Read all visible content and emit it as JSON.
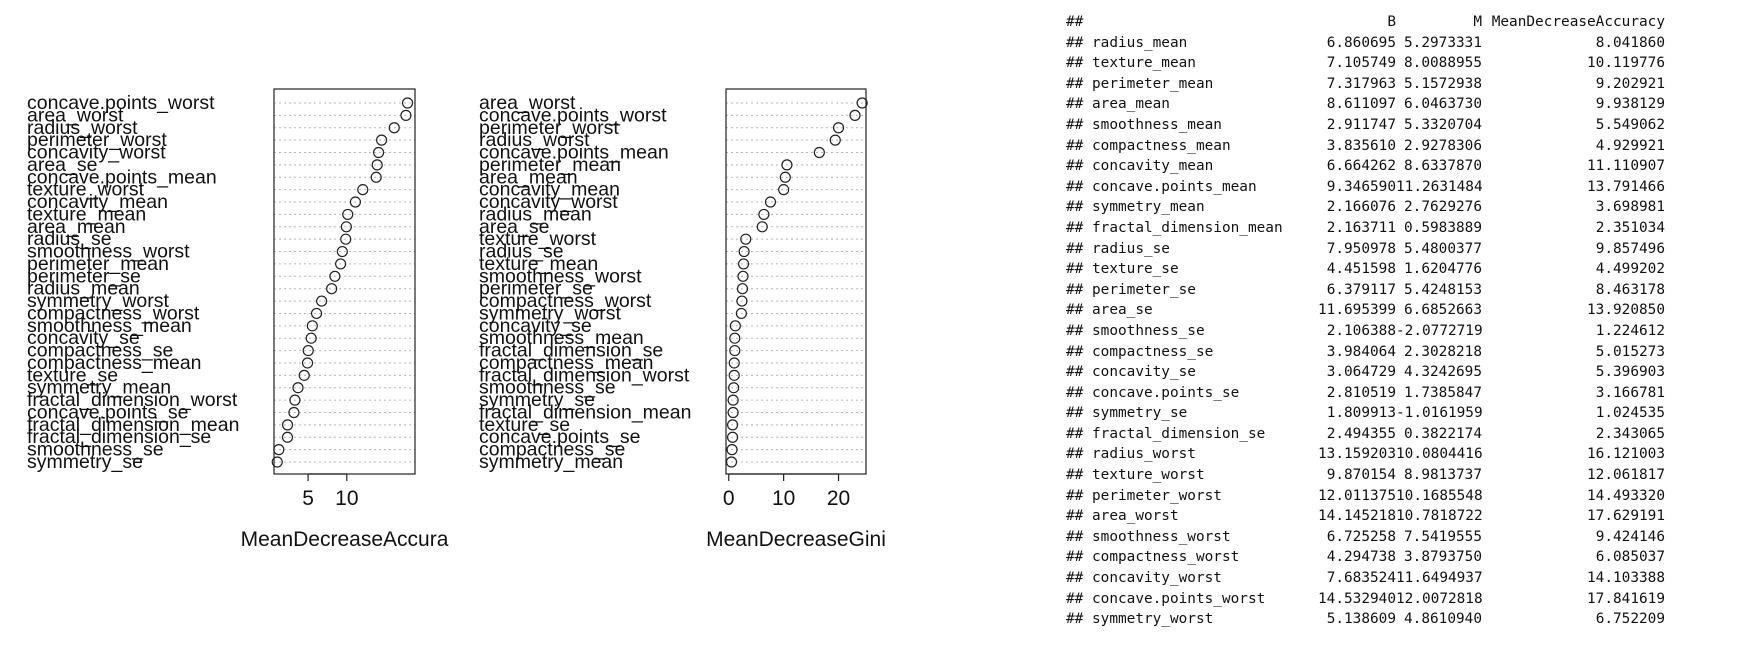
{
  "chart_data": [
    {
      "type": "scatter",
      "plot": "dotchart",
      "xlabel": "MeanDecreaseAccura",
      "xticks": [
        5,
        10
      ],
      "xlim": [
        0.6,
        18.8
      ],
      "grid": true,
      "labels": [
        "concave.points_worst",
        "area_worst",
        "radius_worst",
        "perimeter_worst",
        "concavity_worst",
        "area_se",
        "concave.points_mean",
        "texture_worst",
        "concavity_mean",
        "texture_mean",
        "area_mean",
        "radius_se",
        "smoothness_worst",
        "perimeter_mean",
        "perimeter_se",
        "radius_mean",
        "symmetry_worst",
        "compactness_worst",
        "smoothness_mean",
        "concavity_se",
        "compactness_se",
        "compactness_mean",
        "texture_se",
        "symmetry_mean",
        "fractal_dimension_worst",
        "concave.points_se",
        "fractal_dimension_mean",
        "fractal_dimension_se",
        "smoothness_se",
        "symmetry_se"
      ],
      "values": [
        17.84,
        17.63,
        16.12,
        14.49,
        14.1,
        13.92,
        13.79,
        12.06,
        11.11,
        10.12,
        9.94,
        9.86,
        9.42,
        9.2,
        8.46,
        8.04,
        6.75,
        6.09,
        5.55,
        5.4,
        5.02,
        4.93,
        4.5,
        3.7,
        3.3,
        3.17,
        2.35,
        2.34,
        1.22,
        1.02
      ]
    },
    {
      "type": "scatter",
      "plot": "dotchart",
      "xlabel": "MeanDecreaseGini",
      "xticks": [
        0,
        10,
        20
      ],
      "xlim": [
        -0.5,
        25
      ],
      "grid": true,
      "labels": [
        "area_worst",
        "concave.points_worst",
        "perimeter_worst",
        "radius_worst",
        "concave.points_mean",
        "perimeter_mean",
        "area_mean",
        "concavity_mean",
        "concavity_worst",
        "radius_mean",
        "area_se",
        "texture_worst",
        "radius_se",
        "texture_mean",
        "smoothness_worst",
        "perimeter_se",
        "compactness_worst",
        "symmetry_worst",
        "concavity_se",
        "smoothness_mean",
        "fractal_dimension_se",
        "compactness_mean",
        "fractal_dimension_worst",
        "smoothness_se",
        "symmetry_se",
        "fractal_dimension_mean",
        "texture_se",
        "concave.points_se",
        "compactness_se",
        "symmetry_mean"
      ],
      "values": [
        24.3,
        23.0,
        20.0,
        19.4,
        16.5,
        10.6,
        10.3,
        10.0,
        7.6,
        6.4,
        6.1,
        3.1,
        2.8,
        2.7,
        2.6,
        2.5,
        2.4,
        2.3,
        1.2,
        1.1,
        1.1,
        1.0,
        1.0,
        0.9,
        0.8,
        0.8,
        0.7,
        0.7,
        0.6,
        0.5
      ]
    }
  ],
  "console": {
    "prefix": "##",
    "header": {
      "b": "B",
      "m": "M",
      "acc": "MeanDecreaseAccuracy"
    },
    "rows": [
      {
        "name": "radius_mean",
        "b": "6.860695",
        "m": "5.2973331",
        "acc": "8.041860"
      },
      {
        "name": "texture_mean",
        "b": "7.105749",
        "m": "8.0088955",
        "acc": "10.119776"
      },
      {
        "name": "perimeter_mean",
        "b": "7.317963",
        "m": "5.1572938",
        "acc": "9.202921"
      },
      {
        "name": "area_mean",
        "b": "8.611097",
        "m": "6.0463730",
        "acc": "9.938129"
      },
      {
        "name": "smoothness_mean",
        "b": "2.911747",
        "m": "5.3320704",
        "acc": "5.549062"
      },
      {
        "name": "compactness_mean",
        "b": "3.835610",
        "m": "2.9278306",
        "acc": "4.929921"
      },
      {
        "name": "concavity_mean",
        "b": "6.664262",
        "m": "8.6337870",
        "acc": "11.110907"
      },
      {
        "name": "concave.points_mean",
        "b": "9.346590",
        "m": "11.2631484",
        "acc": "13.791466"
      },
      {
        "name": "symmetry_mean",
        "b": "2.166076",
        "m": "2.7629276",
        "acc": "3.698981"
      },
      {
        "name": "fractal_dimension_mean",
        "b": "2.163711",
        "m": "0.5983889",
        "acc": "2.351034"
      },
      {
        "name": "radius_se",
        "b": "7.950978",
        "m": "5.4800377",
        "acc": "9.857496"
      },
      {
        "name": "texture_se",
        "b": "4.451598",
        "m": "1.6204776",
        "acc": "4.499202"
      },
      {
        "name": "perimeter_se",
        "b": "6.379117",
        "m": "5.4248153",
        "acc": "8.463178"
      },
      {
        "name": "area_se",
        "b": "11.695399",
        "m": "6.6852663",
        "acc": "13.920850"
      },
      {
        "name": "smoothness_se",
        "b": "2.106388",
        "m": "-2.0772719",
        "acc": "1.224612"
      },
      {
        "name": "compactness_se",
        "b": "3.984064",
        "m": "2.3028218",
        "acc": "5.015273"
      },
      {
        "name": "concavity_se",
        "b": "3.064729",
        "m": "4.3242695",
        "acc": "5.396903"
      },
      {
        "name": "concave.points_se",
        "b": "2.810519",
        "m": "1.7385847",
        "acc": "3.166781"
      },
      {
        "name": "symmetry_se",
        "b": "1.809913",
        "m": "-1.0161959",
        "acc": "1.024535"
      },
      {
        "name": "fractal_dimension_se",
        "b": "2.494355",
        "m": "0.3822174",
        "acc": "2.343065"
      },
      {
        "name": "radius_worst",
        "b": "13.159203",
        "m": "10.0804416",
        "acc": "16.121003"
      },
      {
        "name": "texture_worst",
        "b": "9.870154",
        "m": "8.9813737",
        "acc": "12.061817"
      },
      {
        "name": "perimeter_worst",
        "b": "12.011375",
        "m": "10.1685548",
        "acc": "14.493320"
      },
      {
        "name": "area_worst",
        "b": "14.145218",
        "m": "10.7818722",
        "acc": "17.629191"
      },
      {
        "name": "smoothness_worst",
        "b": "6.725258",
        "m": "7.5419555",
        "acc": "9.424146"
      },
      {
        "name": "compactness_worst",
        "b": "4.294738",
        "m": "3.8793750",
        "acc": "6.085037"
      },
      {
        "name": "concavity_worst",
        "b": "7.683524",
        "m": "11.6494937",
        "acc": "14.103388"
      },
      {
        "name": "concave.points_worst",
        "b": "14.532940",
        "m": "12.0072818",
        "acc": "17.841619"
      },
      {
        "name": "symmetry_worst",
        "b": "5.138609",
        "m": "4.8610940",
        "acc": "6.752209"
      }
    ]
  }
}
